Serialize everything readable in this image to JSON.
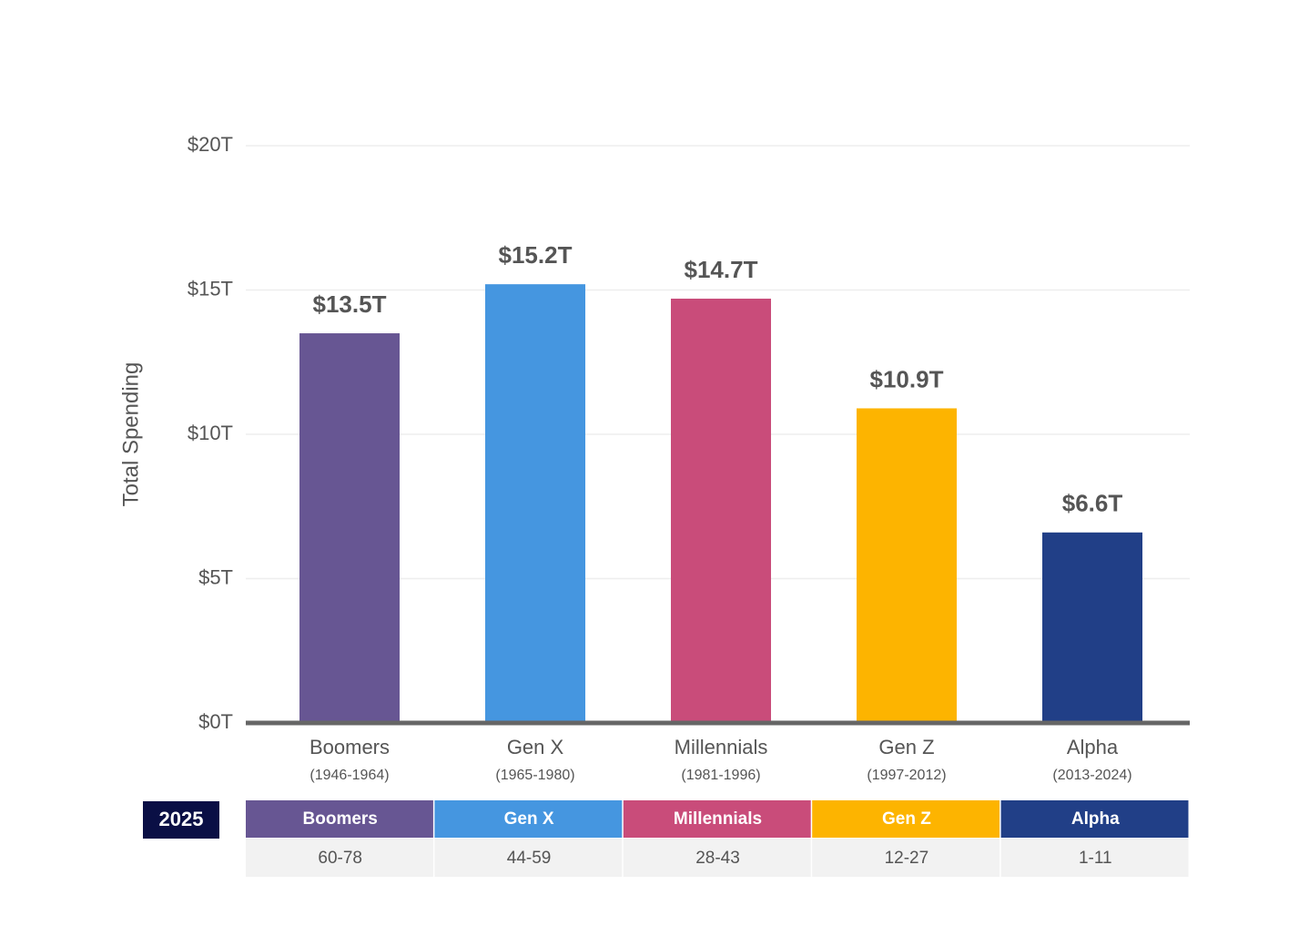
{
  "chart_data": {
    "type": "bar",
    "ylabel": "Total Spending",
    "categories": [
      "Boomers",
      "Gen X",
      "Millennials",
      "Gen Z",
      "Alpha"
    ],
    "category_years": [
      "(1946-1964)",
      "(1965-1980)",
      "(1981-1996)",
      "(1997-2012)",
      "(2013-2024)"
    ],
    "values": [
      13.5,
      15.2,
      14.7,
      10.9,
      6.6
    ],
    "value_labels": [
      "$13.5T",
      "$15.2T",
      "$14.7T",
      "$10.9T",
      "$6.6T"
    ],
    "colors": [
      "#675693",
      "#4596e0",
      "#c94c7a",
      "#fdb400",
      "#213f87"
    ],
    "ylim": [
      0,
      20
    ],
    "yticks": [
      {
        "value": 0,
        "label": "$0T"
      },
      {
        "value": 5,
        "label": "$5T"
      },
      {
        "value": 10,
        "label": "$10T"
      },
      {
        "value": 15,
        "label": "$15T"
      },
      {
        "value": 20,
        "label": "$20T"
      }
    ],
    "grid": true
  },
  "table": {
    "year_label": "2025",
    "headers": [
      "Boomers",
      "Gen X",
      "Millennials",
      "Gen Z",
      "Alpha"
    ],
    "rows": [
      [
        "60-78",
        "44-59",
        "28-43",
        "12-27",
        "1-11"
      ]
    ]
  }
}
